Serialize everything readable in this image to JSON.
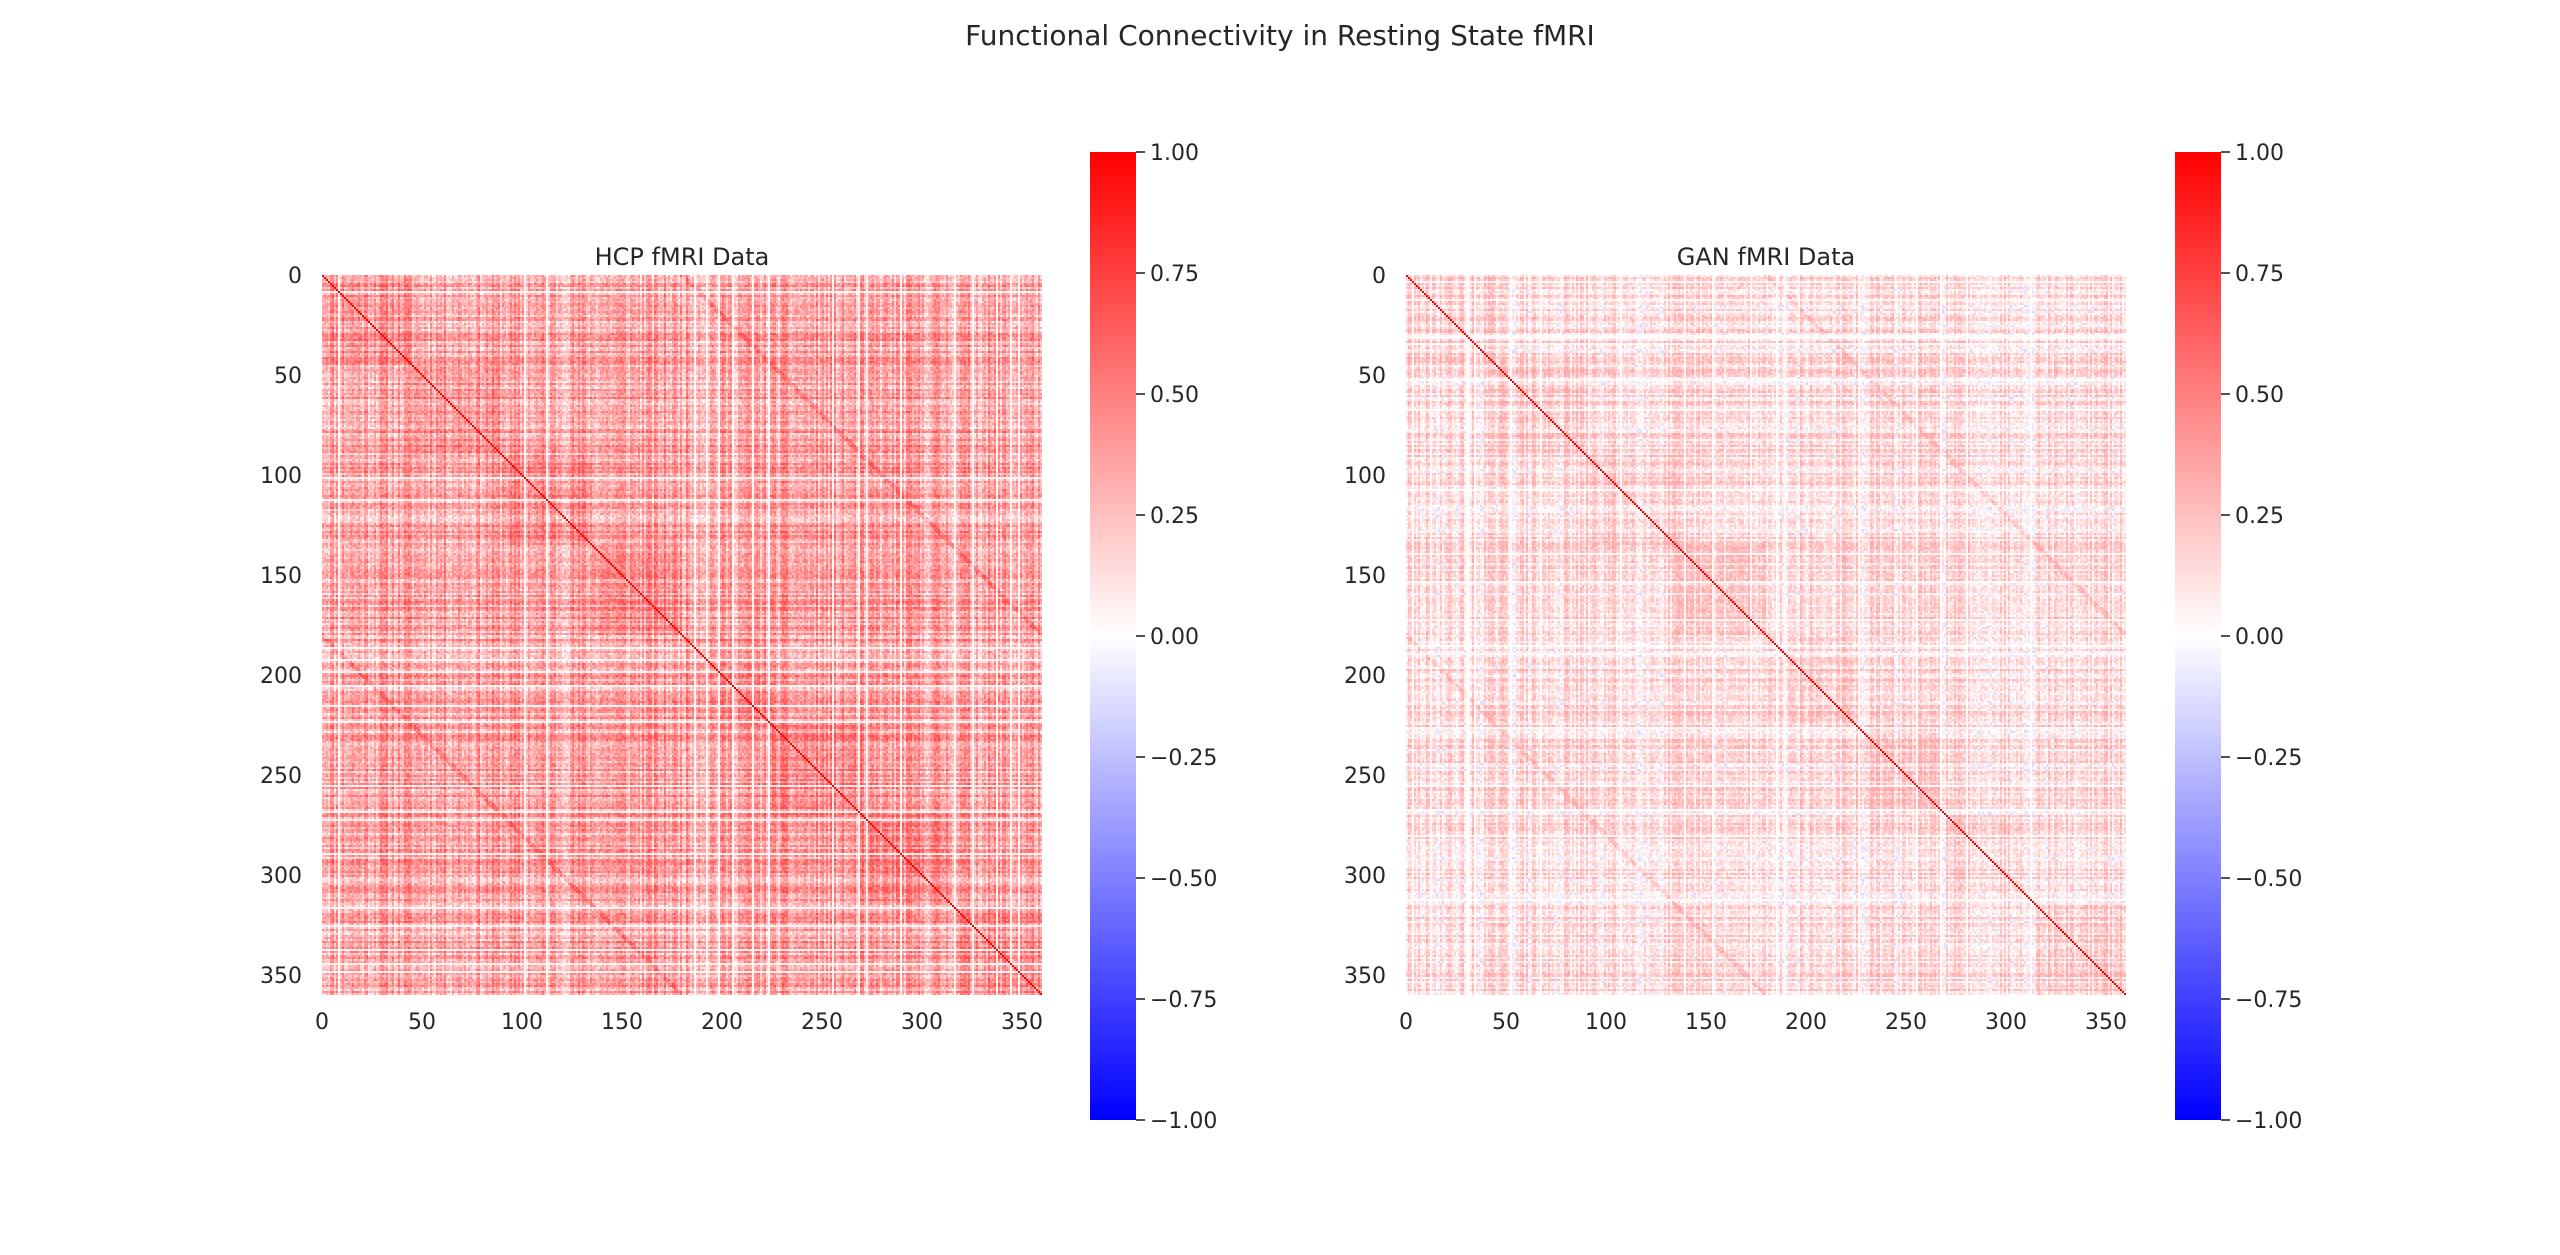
{
  "figure": {
    "suptitle": "Functional Connectivity in Resting State fMRI"
  },
  "chart_data": [
    {
      "type": "heatmap",
      "title": "HCP fMRI Data",
      "matrix_size": 360,
      "xlim": [
        0,
        360
      ],
      "ylim": [
        360,
        0
      ],
      "xticks": [
        "0",
        "50",
        "100",
        "150",
        "200",
        "250",
        "300",
        "350"
      ],
      "yticks": [
        "0",
        "50",
        "100",
        "150",
        "200",
        "250",
        "300",
        "350"
      ],
      "diagonal_value": 1.0,
      "approx_offdiagonal_mean": 0.35,
      "approx_offdiagonal_range": [
        0.0,
        0.7
      ],
      "colormap": "bwr",
      "colorbar": {
        "vmin": -1.0,
        "vmax": 1.0,
        "ticks": [
          "1.00",
          "0.75",
          "0.50",
          "0.25",
          "0.00",
          "−0.25",
          "−0.50",
          "−0.75",
          "−1.00"
        ],
        "colors": {
          "low": "#0000ff",
          "mid": "#ffffff",
          "high": "#ff0000"
        }
      }
    },
    {
      "type": "heatmap",
      "title": "GAN fMRI Data",
      "matrix_size": 360,
      "xlim": [
        0,
        360
      ],
      "ylim": [
        360,
        0
      ],
      "xticks": [
        "0",
        "50",
        "100",
        "150",
        "200",
        "250",
        "300",
        "350"
      ],
      "yticks": [
        "0",
        "50",
        "100",
        "150",
        "200",
        "250",
        "300",
        "350"
      ],
      "diagonal_value": 1.0,
      "approx_offdiagonal_mean": 0.12,
      "approx_offdiagonal_range": [
        -0.15,
        0.35
      ],
      "colormap": "bwr",
      "colorbar": {
        "vmin": -1.0,
        "vmax": 1.0,
        "ticks": [
          "1.00",
          "0.75",
          "0.50",
          "0.25",
          "0.00",
          "−0.25",
          "−0.50",
          "−0.75",
          "−1.00"
        ],
        "colors": {
          "low": "#0000ff",
          "mid": "#ffffff",
          "high": "#ff0000"
        }
      }
    }
  ]
}
